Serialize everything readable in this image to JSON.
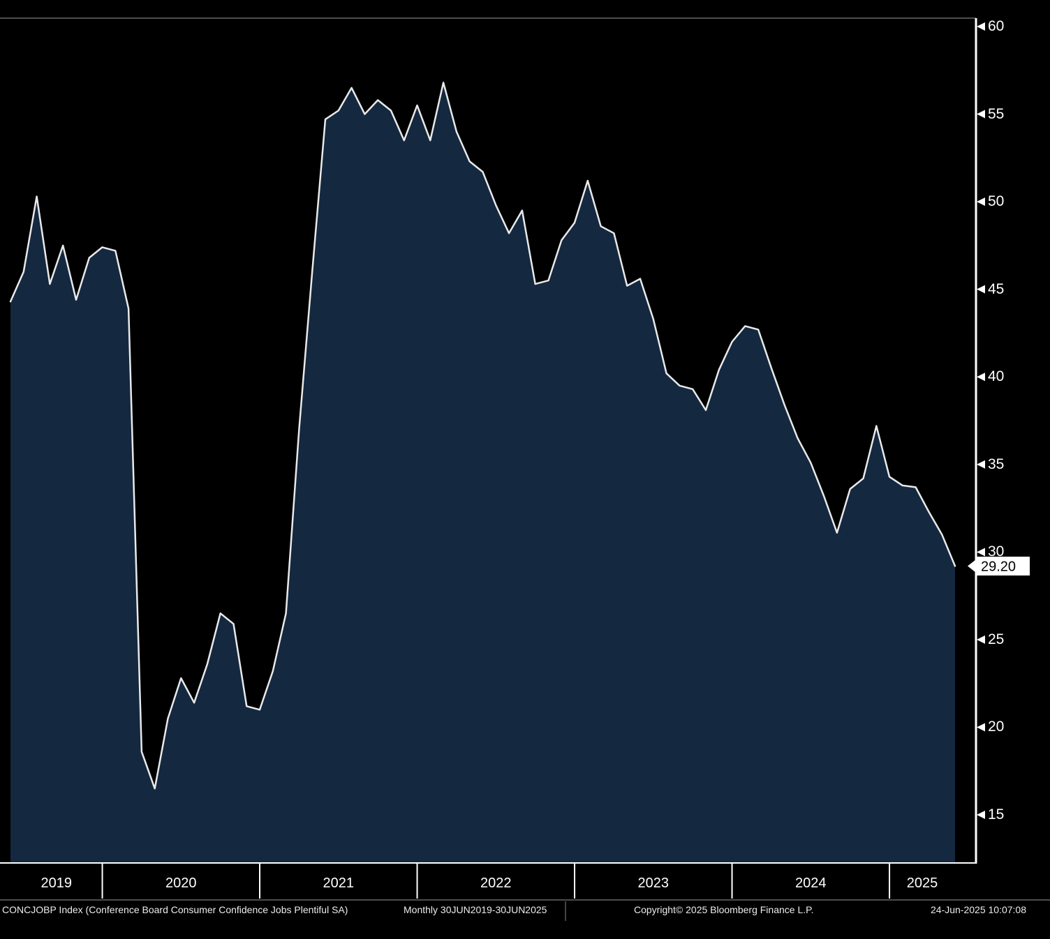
{
  "chart_data": {
    "type": "area",
    "series_name": "CONCJOBP Index",
    "title": "CONCJOBP Index (Conference Board Consumer Confidence Jobs Plentiful SA)",
    "frequency": "Monthly",
    "date_range": "30JUN2019-30JUN2025",
    "x_start": "Jun-2019",
    "x_end": "Jun-2025",
    "values": [
      44.3,
      46.0,
      50.3,
      45.3,
      47.5,
      44.4,
      46.8,
      47.4,
      47.2,
      43.9,
      18.6,
      16.5,
      20.5,
      22.8,
      21.4,
      23.6,
      26.5,
      25.9,
      21.2,
      21.0,
      23.2,
      26.5,
      37.0,
      46.0,
      54.7,
      55.2,
      56.5,
      55.0,
      55.8,
      55.2,
      53.5,
      55.5,
      53.5,
      56.8,
      54.0,
      52.3,
      51.7,
      49.8,
      48.2,
      49.5,
      45.3,
      45.5,
      47.8,
      48.8,
      51.2,
      48.6,
      48.2,
      45.2,
      45.6,
      43.3,
      40.2,
      39.5,
      39.3,
      38.1,
      40.4,
      42.0,
      42.9,
      42.7,
      40.5,
      38.4,
      36.5,
      35.1,
      33.2,
      31.1,
      33.6,
      34.2,
      37.2,
      34.3,
      33.8,
      33.7,
      32.3,
      31.0,
      29.2
    ],
    "last_value": 29.2,
    "last_value_label": "29.20",
    "y_ticks": [
      60,
      55,
      50,
      45,
      40,
      35,
      30,
      25,
      20,
      15
    ],
    "ylim": [
      12.5,
      60.5
    ],
    "x_year_labels": [
      "2019",
      "2020",
      "2021",
      "2022",
      "2023",
      "2024",
      "2025"
    ],
    "year_boundaries": [
      7,
      19,
      31,
      43,
      55,
      67
    ],
    "legend": "none",
    "grid": "off",
    "colors": {
      "background": "#000000",
      "area_fill": "#142840",
      "line": "#e9e9e9",
      "axis": "#ffffff",
      "tag_bg": "#ffffff",
      "tag_text": "#000000"
    }
  },
  "footer": {
    "security": "CONCJOBP Index (Conference Board Consumer Confidence Jobs Plentiful SA)",
    "periodicity_range": "Monthly 30JUN2019-30JUN2025",
    "copyright": "Copyright© 2025 Bloomberg Finance L.P.",
    "timestamp": "24-Jun-2025 10:07:08"
  }
}
